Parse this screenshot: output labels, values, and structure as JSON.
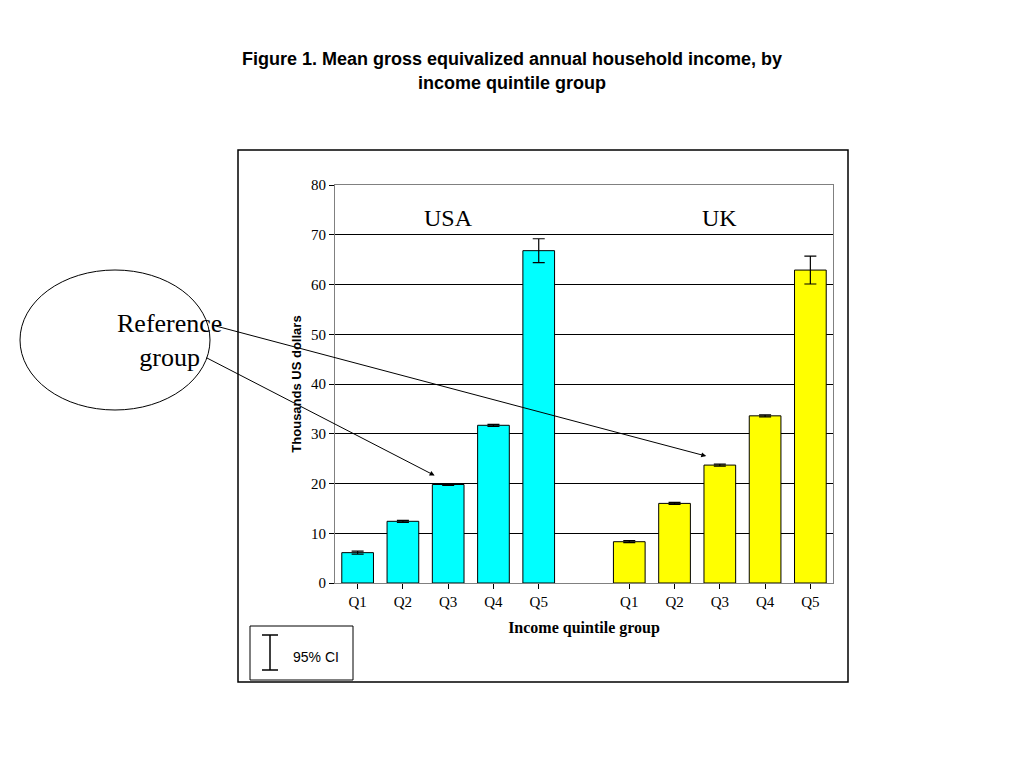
{
  "chart_data": {
    "type": "bar",
    "title": "Figure 1. Mean gross equivalized annual household income, by\nincome quintile group",
    "x_label": "Income quintile group",
    "y_label": "Thousands US dollars",
    "categories": [
      "Q1",
      "Q2",
      "Q3",
      "Q4",
      "Q5",
      null,
      "Q1",
      "Q2",
      "Q3",
      "Q4",
      "Q5"
    ],
    "series": [
      {
        "name": "USA",
        "color": "#00ffff",
        "values": [
          6.1,
          12.4,
          19.8,
          31.7,
          66.8,
          null,
          null,
          null,
          null,
          null,
          null
        ],
        "errors": [
          0.3,
          0.2,
          0.2,
          0.2,
          2.4,
          null,
          null,
          null,
          null,
          null,
          null
        ]
      },
      {
        "name": "UK",
        "color": "#ffff00",
        "values": [
          null,
          null,
          null,
          null,
          null,
          null,
          8.3,
          16.0,
          23.7,
          33.6,
          62.9
        ],
        "errors": [
          null,
          null,
          null,
          null,
          null,
          null,
          0.2,
          0.2,
          0.2,
          0.2,
          2.8
        ]
      }
    ],
    "ylim": [
      0,
      80
    ],
    "yticks": [
      0,
      10,
      20,
      30,
      40,
      50,
      60,
      70,
      80
    ],
    "grid": true,
    "error_label": "95% CI",
    "annotations": [
      {
        "text": "Reference\ngroup",
        "arrows_to": [
          2,
          8
        ]
      }
    ]
  }
}
